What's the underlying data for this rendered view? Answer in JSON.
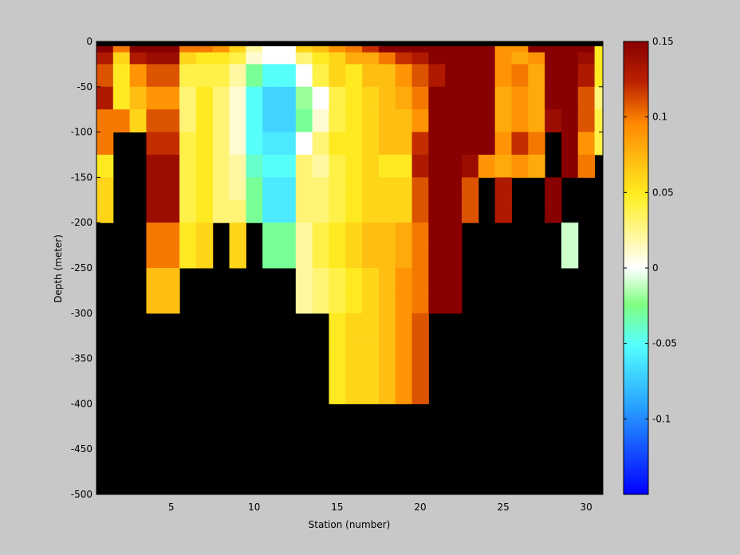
{
  "chart_data": {
    "type": "heatmap",
    "title": "",
    "xlabel": "Station (number)",
    "ylabel": "Depth (meter)",
    "xlim": [
      0.5,
      31
    ],
    "ylim": [
      -500,
      0
    ],
    "xticks": [
      5,
      10,
      15,
      20,
      25,
      30
    ],
    "yticks": [
      0,
      -50,
      -100,
      -150,
      -200,
      -250,
      -300,
      -350,
      -400,
      -450,
      -500
    ],
    "colorbar": {
      "range": [
        -0.15,
        0.15
      ],
      "ticks": [
        0.15,
        0.1,
        0.05,
        0,
        -0.05,
        -0.1
      ],
      "tick_labels": [
        "0.15",
        "0.1",
        "0.05",
        "0",
        "-0.05",
        "-0.1"
      ],
      "colormap": "blue-cyan-green-white-yellow-orange-darkred"
    },
    "no_data_color": "#000000",
    "stations": [
      1,
      2,
      3,
      4,
      5,
      6,
      7,
      8,
      9,
      10,
      11,
      12,
      13,
      14,
      15,
      16,
      17,
      18,
      19,
      20,
      21,
      22,
      23,
      24,
      25,
      26,
      27,
      28,
      29,
      30,
      31
    ],
    "depth_bins": [
      [
        0,
        -12
      ],
      [
        -12,
        -25
      ],
      [
        -25,
        -50
      ],
      [
        -50,
        -75
      ],
      [
        -75,
        -100
      ],
      [
        -100,
        -125
      ],
      [
        -125,
        -150
      ],
      [
        -150,
        -175
      ],
      [
        -175,
        -200
      ],
      [
        -200,
        -225
      ],
      [
        -225,
        -250
      ],
      [
        -250,
        -275
      ],
      [
        -275,
        -300
      ],
      [
        -300,
        -325
      ],
      [
        -325,
        -350
      ],
      [
        -350,
        -375
      ],
      [
        -375,
        -400
      ]
    ],
    "values": [
      [
        0.15,
        0.1,
        0.15,
        0.15,
        0.15,
        0.1,
        0.1,
        0.09,
        0.06,
        0.02,
        0.0,
        0.0,
        0.06,
        0.07,
        0.09,
        0.1,
        0.12,
        0.15,
        0.15,
        0.15,
        0.15,
        0.15,
        0.15,
        0.15,
        0.09,
        0.09,
        0.15,
        0.15,
        0.15,
        0.15,
        0.05
      ],
      [
        0.13,
        0.06,
        0.13,
        0.14,
        0.14,
        0.06,
        0.05,
        0.05,
        0.04,
        0.01,
        0.0,
        0.0,
        0.03,
        0.05,
        0.06,
        0.08,
        0.08,
        0.1,
        0.12,
        0.13,
        0.15,
        0.15,
        0.15,
        0.15,
        0.09,
        0.08,
        0.09,
        0.15,
        0.15,
        0.14,
        0.05
      ],
      [
        0.11,
        0.05,
        0.09,
        0.11,
        0.11,
        0.04,
        0.04,
        0.04,
        0.02,
        -0.03,
        -0.05,
        -0.05,
        0.0,
        0.04,
        0.06,
        0.05,
        0.07,
        0.07,
        0.09,
        0.11,
        0.13,
        0.15,
        0.15,
        0.15,
        0.09,
        0.1,
        0.08,
        0.15,
        0.15,
        0.13,
        0.05
      ],
      [
        0.13,
        0.05,
        0.07,
        0.09,
        0.09,
        0.03,
        0.05,
        0.03,
        0.01,
        -0.05,
        -0.07,
        -0.07,
        -0.02,
        0.0,
        0.04,
        0.05,
        0.06,
        0.07,
        0.08,
        0.1,
        0.15,
        0.15,
        0.15,
        0.15,
        0.08,
        0.09,
        0.08,
        0.15,
        0.15,
        0.11,
        0.03
      ],
      [
        0.1,
        0.1,
        0.06,
        0.11,
        0.11,
        0.03,
        0.05,
        0.03,
        0.01,
        -0.05,
        -0.07,
        -0.07,
        -0.03,
        0.01,
        0.04,
        0.05,
        0.06,
        0.07,
        0.07,
        0.09,
        0.15,
        0.15,
        0.15,
        0.15,
        0.08,
        0.09,
        0.08,
        0.14,
        0.15,
        0.11,
        0.04
      ],
      [
        0.1,
        null,
        null,
        0.12,
        0.12,
        0.04,
        0.05,
        0.03,
        0.01,
        -0.05,
        -0.06,
        -0.06,
        0.0,
        0.03,
        0.05,
        0.05,
        0.06,
        0.07,
        0.07,
        0.12,
        0.15,
        0.15,
        0.15,
        0.15,
        0.09,
        0.12,
        0.1,
        null,
        0.15,
        0.09,
        0.04
      ],
      [
        0.05,
        null,
        null,
        0.14,
        0.14,
        0.04,
        0.05,
        0.03,
        0.02,
        -0.04,
        -0.05,
        -0.05,
        0.03,
        0.02,
        0.04,
        0.05,
        0.06,
        0.05,
        0.05,
        0.13,
        0.15,
        0.15,
        0.14,
        0.09,
        0.08,
        0.09,
        0.08,
        null,
        0.15,
        0.1,
        null
      ],
      [
        0.06,
        null,
        null,
        0.14,
        0.14,
        0.04,
        0.05,
        0.03,
        0.02,
        -0.03,
        -0.06,
        -0.06,
        0.03,
        0.03,
        0.04,
        0.05,
        0.06,
        0.06,
        0.06,
        0.11,
        0.15,
        0.15,
        0.11,
        null,
        0.13,
        null,
        null,
        0.15,
        null,
        null,
        null
      ],
      [
        0.06,
        null,
        null,
        0.14,
        0.14,
        0.04,
        0.05,
        0.03,
        0.03,
        -0.03,
        -0.06,
        -0.06,
        0.03,
        0.03,
        0.04,
        0.05,
        0.06,
        0.06,
        0.06,
        0.11,
        0.15,
        0.15,
        0.11,
        null,
        0.13,
        null,
        null,
        0.15,
        null,
        null,
        null
      ],
      [
        null,
        null,
        null,
        0.1,
        0.1,
        0.05,
        0.06,
        null,
        0.06,
        null,
        -0.03,
        -0.03,
        0.02,
        0.04,
        0.05,
        0.06,
        0.07,
        0.07,
        0.08,
        0.1,
        0.15,
        0.15,
        null,
        null,
        null,
        null,
        null,
        null,
        -0.01,
        null,
        null
      ],
      [
        null,
        null,
        null,
        0.1,
        0.1,
        0.05,
        0.06,
        null,
        0.06,
        null,
        -0.03,
        -0.03,
        0.02,
        0.04,
        0.05,
        0.06,
        0.07,
        0.07,
        0.08,
        0.1,
        0.15,
        0.15,
        null,
        null,
        null,
        null,
        null,
        null,
        -0.01,
        null,
        null
      ],
      [
        null,
        null,
        null,
        0.07,
        0.07,
        null,
        null,
        null,
        null,
        null,
        null,
        null,
        0.02,
        0.03,
        0.04,
        0.05,
        0.06,
        0.07,
        0.09,
        0.1,
        0.15,
        0.15,
        null,
        null,
        null,
        null,
        null,
        null,
        null,
        null,
        null
      ],
      [
        null,
        null,
        null,
        0.07,
        0.07,
        null,
        null,
        null,
        null,
        null,
        null,
        null,
        0.02,
        0.03,
        0.04,
        0.05,
        0.06,
        0.07,
        0.09,
        0.1,
        0.15,
        0.15,
        null,
        null,
        null,
        null,
        null,
        null,
        null,
        null,
        null
      ],
      [
        null,
        null,
        null,
        null,
        null,
        null,
        null,
        null,
        null,
        null,
        null,
        null,
        null,
        null,
        0.05,
        0.06,
        0.06,
        0.07,
        0.09,
        0.11,
        null,
        null,
        null,
        null,
        null,
        null,
        null,
        null,
        null,
        null,
        null
      ],
      [
        null,
        null,
        null,
        null,
        null,
        null,
        null,
        null,
        null,
        null,
        null,
        null,
        null,
        null,
        0.05,
        0.06,
        0.06,
        0.07,
        0.09,
        0.11,
        null,
        null,
        null,
        null,
        null,
        null,
        null,
        null,
        null,
        null,
        null
      ],
      [
        null,
        null,
        null,
        null,
        null,
        null,
        null,
        null,
        null,
        null,
        null,
        null,
        null,
        null,
        0.05,
        0.06,
        0.06,
        0.07,
        0.09,
        0.11,
        null,
        null,
        null,
        null,
        null,
        null,
        null,
        null,
        null,
        null,
        null
      ],
      [
        null,
        null,
        null,
        null,
        null,
        null,
        null,
        null,
        null,
        null,
        null,
        null,
        null,
        null,
        0.05,
        0.06,
        0.06,
        0.07,
        0.09,
        0.11,
        null,
        null,
        null,
        null,
        null,
        null,
        null,
        null,
        null,
        null,
        null
      ]
    ]
  }
}
